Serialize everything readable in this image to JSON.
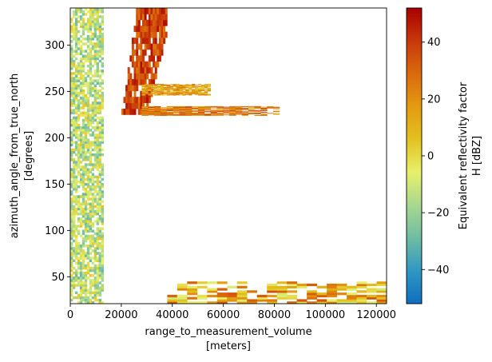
{
  "chart_data": {
    "type": "heatmap",
    "xlabel": "range_to_measurement_volume",
    "xlabel_units": "[meters]",
    "ylabel": "azimuth_angle_from_true_north",
    "ylabel_units": "[degrees]",
    "xlim": [
      0,
      124000
    ],
    "ylim": [
      21,
      340
    ],
    "xticks": [
      0,
      20000,
      40000,
      60000,
      80000,
      100000,
      120000
    ],
    "xtick_labels": [
      "0",
      "20000",
      "40000",
      "60000",
      "80000",
      "100000",
      "120000"
    ],
    "yticks": [
      50,
      100,
      150,
      200,
      250,
      300
    ],
    "ytick_labels": [
      "50",
      "100",
      "150",
      "200",
      "250",
      "300"
    ],
    "colorbar": {
      "label": "Equivalent reflectivity factor",
      "label_units": "H [dBZ]",
      "range": [
        -52,
        52
      ],
      "ticks": [
        -40,
        -20,
        0,
        20,
        40
      ],
      "tick_labels": [
        "−40",
        "−20",
        "0",
        "20",
        "40"
      ],
      "colormap": [
        "#0f6fbf",
        "#2f98c2",
        "#6fbca2",
        "#a8d890",
        "#e8f06a",
        "#e2c21e",
        "#e49a10",
        "#d96a0c",
        "#c8380a",
        "#a80000"
      ]
    },
    "features": [
      {
        "name": "near-range clutter band",
        "range_m": [
          0,
          13000
        ],
        "azimuth_deg": [
          21,
          340
        ],
        "dbz": [
          -30,
          5
        ]
      },
      {
        "name": "storm core",
        "range_m": [
          20000,
          38000
        ],
        "azimuth_deg": [
          225,
          340
        ],
        "dbz": [
          25,
          50
        ]
      },
      {
        "name": "radial streak",
        "range_m": [
          28000,
          82000
        ],
        "azimuth_deg": [
          224,
          234
        ],
        "dbz": [
          10,
          40
        ]
      },
      {
        "name": "secondary streak",
        "range_m": [
          28000,
          55000
        ],
        "azimuth_deg": [
          246,
          258
        ],
        "dbz": [
          0,
          30
        ]
      },
      {
        "name": "far-range echo band",
        "range_m": [
          38000,
          124000
        ],
        "azimuth_deg": [
          21,
          45
        ],
        "dbz": [
          -10,
          35
        ]
      }
    ]
  }
}
